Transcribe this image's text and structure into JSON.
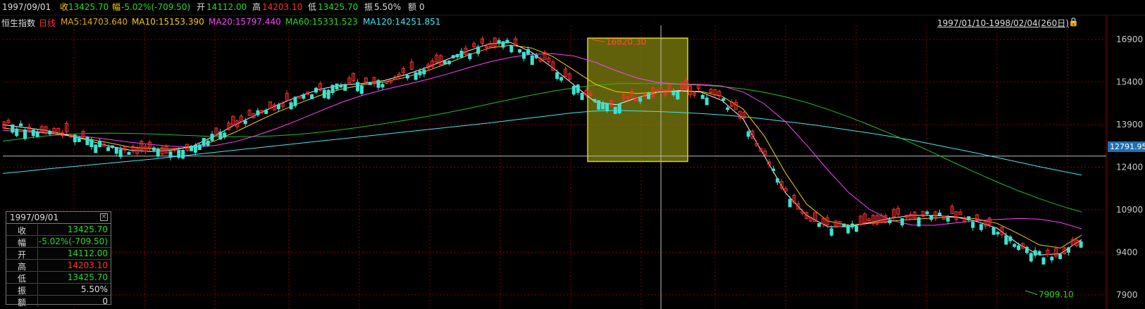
{
  "topbar": {
    "date": "1997/09/01",
    "close_label": "收",
    "close_value": "13425.70",
    "change_label": "幅",
    "change_value": "-5.02%(-709.50)",
    "open_label": "开",
    "open_value": "14112.00",
    "high_label": "高",
    "high_value": "14203.10",
    "low_label": "低",
    "low_value": "13425.70",
    "amp_label": "振",
    "amp_value": "5.50%",
    "amount_label": "额",
    "amount_value": "0"
  },
  "ma_line": {
    "index_name": "恒生指数",
    "period": "日线",
    "ma5": "MA5:14703.640",
    "ma10": "MA10:15153.390",
    "ma20": "MA20:15797.440",
    "ma60": "MA60:15331.523",
    "ma120": "MA120:14251.851"
  },
  "range_label": "1997/01/10-1998/02/04(260日)",
  "lock_icon": "lock-icon",
  "price_tag": "12791.95",
  "info_box": {
    "title": "1997/09/01",
    "close_icon": "close-icon",
    "rows": [
      {
        "k": "收",
        "v": "13425.70",
        "color": "#22dd22"
      },
      {
        "k": "幅",
        "v": "-5.02%(-709.50)",
        "color": "#22dd22"
      },
      {
        "k": "开",
        "v": "14112.00",
        "color": "#22dd22"
      },
      {
        "k": "高",
        "v": "14203.10",
        "color": "#ff3030"
      },
      {
        "k": "低",
        "v": "13425.70",
        "color": "#22dd22"
      },
      {
        "k": "振",
        "v": "5.50%",
        "color": "#dcdcdc"
      },
      {
        "k": "额",
        "v": "0",
        "color": "#dcdcdc"
      }
    ]
  },
  "colors": {
    "up": "#ff3030",
    "down": "#40e0d0",
    "ma5": "#f5f5f5",
    "ma10": "#f5d000",
    "ma20": "#ff40ff",
    "ma60": "#22c022",
    "ma120": "#40e8f0",
    "grid": "#8a0000",
    "highlight": "#d8d800"
  },
  "chart_data": {
    "type": "candlestick",
    "ylim": [
      7400,
      17400
    ],
    "y_ticks": [
      16900,
      15400,
      13900,
      12400,
      10900,
      9400,
      7900
    ],
    "annotations": {
      "max": "16820.30",
      "min": "7909.10"
    },
    "ma_series": {
      "ma120": [
        12180,
        12250,
        12330,
        12400,
        12470,
        12540,
        12610,
        12680,
        12760,
        12840,
        12920,
        13000,
        13080,
        13160,
        13240,
        13320,
        13400,
        13480,
        13560,
        13640,
        13720,
        13800,
        13880,
        13960,
        14050,
        14140,
        14230,
        14320,
        14380,
        14400,
        14380,
        14360,
        14330,
        14290,
        14240,
        14180,
        14100,
        14010,
        13920,
        13820,
        13710,
        13600,
        13480,
        13350,
        13200,
        13050,
        12900,
        12740,
        12580,
        12420,
        12270,
        12120
      ],
      "ma60": [
        13320,
        13410,
        13500,
        13560,
        13590,
        13600,
        13590,
        13570,
        13540,
        13510,
        13480,
        13470,
        13480,
        13510,
        13560,
        13630,
        13720,
        13820,
        13930,
        14050,
        14180,
        14320,
        14470,
        14630,
        14790,
        14940,
        15080,
        15200,
        15290,
        15340,
        15350,
        15340,
        15320,
        15290,
        15240,
        15160,
        15040,
        14880,
        14680,
        14440,
        14170,
        13880,
        13570,
        13240,
        12900,
        12550,
        12210,
        11880,
        11570,
        11290,
        11040,
        10820
      ],
      "ma20": [
        13700,
        13650,
        13600,
        13540,
        13470,
        13380,
        13280,
        13200,
        13140,
        13100,
        13160,
        13300,
        13520,
        13780,
        14070,
        14380,
        14680,
        14930,
        15130,
        15300,
        15480,
        15680,
        15900,
        16110,
        16270,
        16380,
        16400,
        16320,
        16100,
        15800,
        15540,
        15380,
        15330,
        15320,
        15260,
        15050,
        14630,
        14000,
        13180,
        12300,
        11500,
        10900,
        10530,
        10360,
        10350,
        10430,
        10510,
        10560,
        10590,
        10570,
        10450,
        10230
      ],
      "ma10": [
        13780,
        13700,
        13620,
        13520,
        13400,
        13260,
        13110,
        13050,
        13040,
        13100,
        13320,
        13640,
        14000,
        14350,
        14650,
        14930,
        15150,
        15300,
        15400,
        15560,
        15780,
        16050,
        16350,
        16600,
        16700,
        16600,
        16300,
        15820,
        15330,
        15060,
        15000,
        15050,
        15080,
        15070,
        14900,
        14450,
        13500,
        12200,
        11100,
        10500,
        10350,
        10420,
        10500,
        10560,
        10610,
        10640,
        10580,
        10420,
        10060,
        9660,
        9550,
        10000
      ],
      "ma5": [
        13900,
        13800,
        13700,
        13550,
        13350,
        13150,
        13000,
        12950,
        13000,
        13150,
        13500,
        13900,
        14250,
        14600,
        14900,
        15150,
        15300,
        15350,
        15450,
        15650,
        15900,
        16200,
        16500,
        16750,
        16800,
        16450,
        15900,
        15300,
        14700,
        14600,
        14850,
        15050,
        15100,
        15050,
        14750,
        14100,
        12800,
        11500,
        10700,
        10300,
        10300,
        10450,
        10600,
        10700,
        10700,
        10650,
        10500,
        10250,
        9700,
        9300,
        9350,
        9850
      ]
    }
  }
}
